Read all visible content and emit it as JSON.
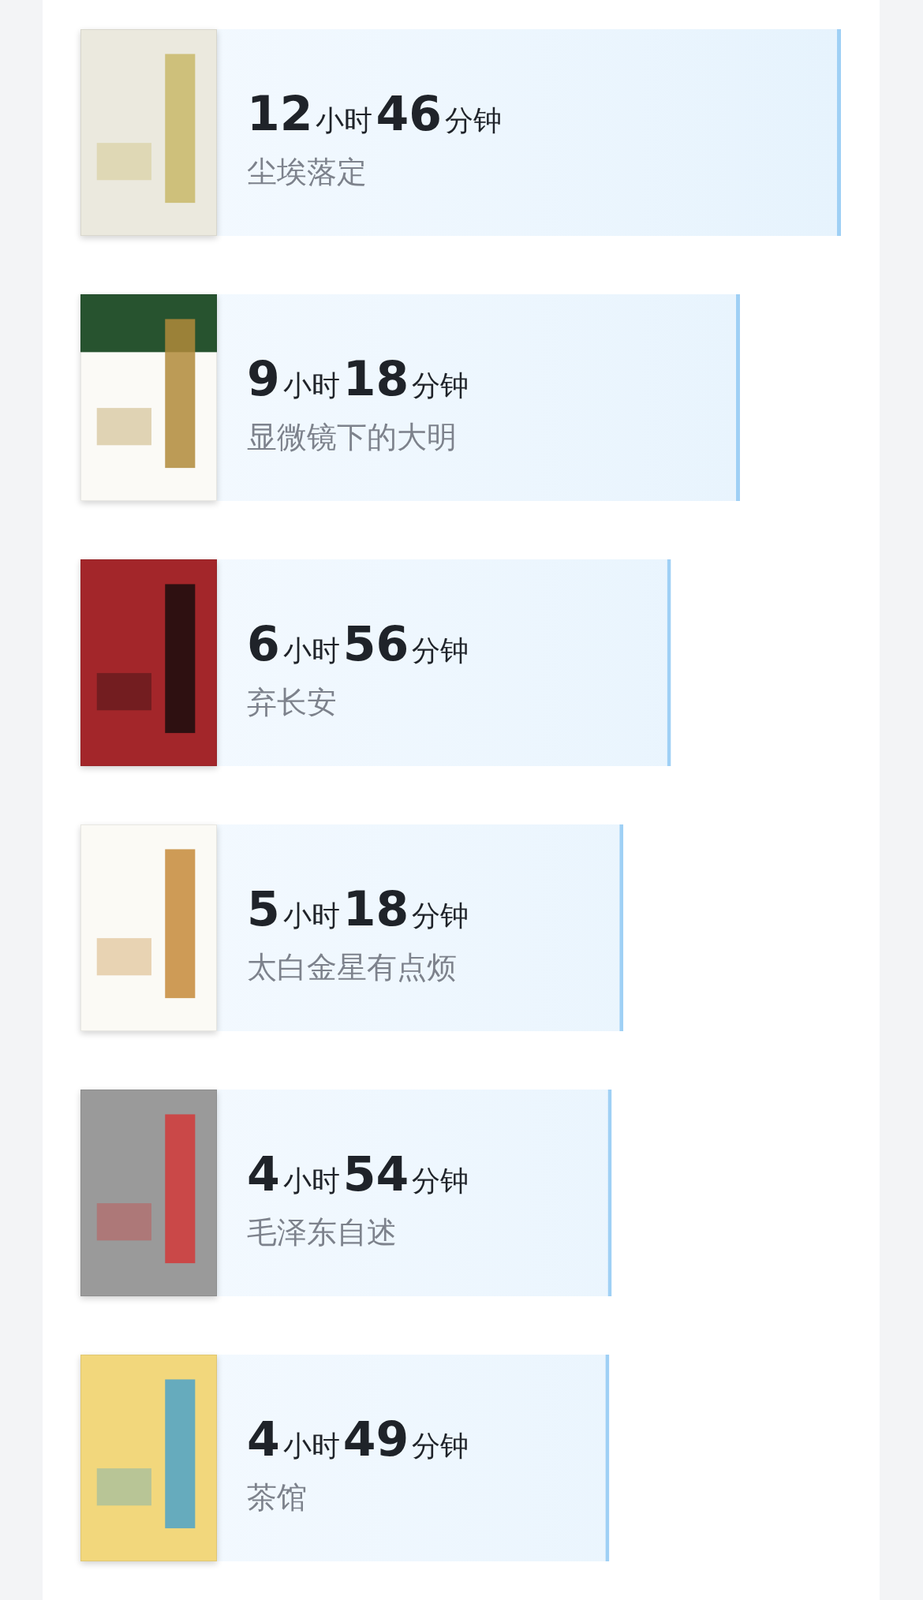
{
  "chart_data": {
    "type": "bar",
    "orientation": "horizontal",
    "categories": [
      "尘埃落定",
      "显微镜下的大明",
      "弃长安",
      "太白金星有点烦",
      "毛泽东自述",
      "茶馆"
    ],
    "values": [
      766,
      558,
      416,
      318,
      294,
      289
    ],
    "value_labels": [
      "12小时46分钟",
      "9小时18分钟",
      "6小时56分钟",
      "5小时18分钟",
      "4小时54分钟",
      "4小时49分钟"
    ],
    "xlim": [
      -800,
      766
    ],
    "color": "#e6f3fd",
    "grid": false,
    "tick_labels": false,
    "data_labels": true
  }
}
